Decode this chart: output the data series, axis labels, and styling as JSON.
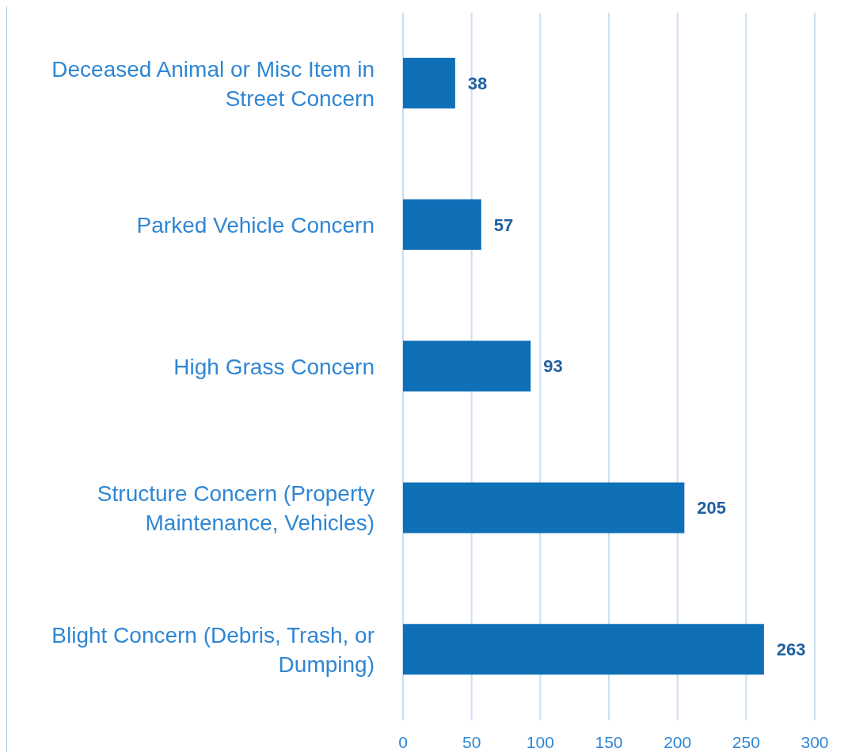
{
  "chart_data": {
    "type": "bar",
    "orientation": "horizontal",
    "categories": [
      "Deceased Animal or Misc Item in Street Concern",
      "Parked Vehicle Concern",
      "High Grass Concern",
      "Structure Concern (Property Maintenance, Vehicles)",
      "Blight Concern (Debris, Trash, or Dumping)"
    ],
    "values": [
      38,
      57,
      93,
      205,
      263
    ],
    "color": "#0f70b7",
    "xlim": [
      0,
      300
    ],
    "xticks": [
      0,
      50,
      100,
      150,
      200,
      250,
      300
    ],
    "grid": "x",
    "data_labels": true
  }
}
